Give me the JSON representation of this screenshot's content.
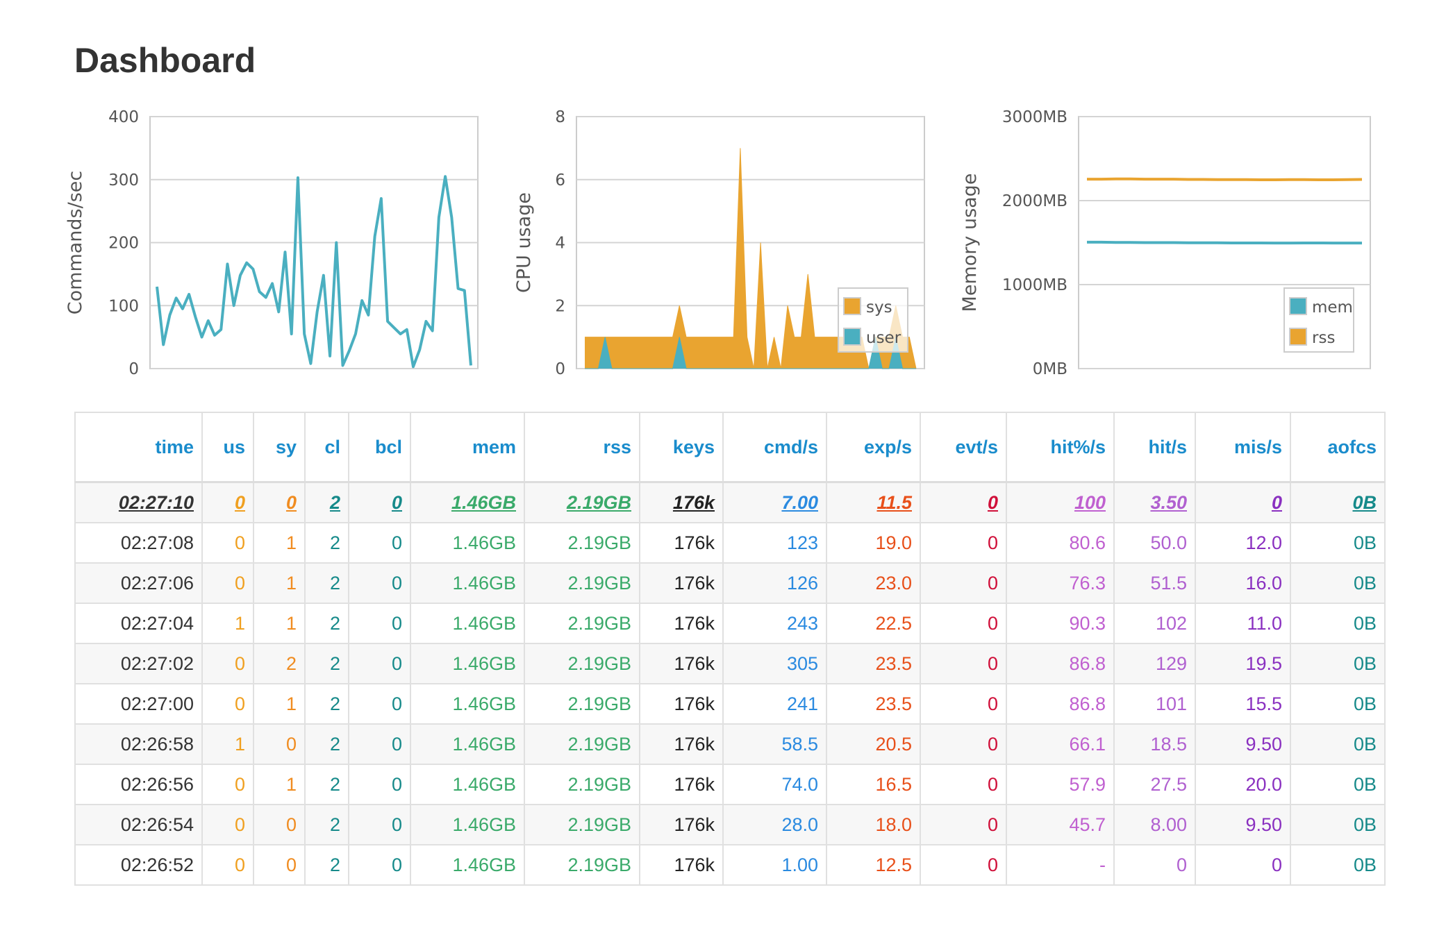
{
  "title": "Dashboard",
  "chart_data": [
    {
      "type": "line",
      "y_label": "Commands/sec",
      "ylim": [
        0,
        400
      ],
      "yticks": [
        0,
        100,
        200,
        300,
        400
      ],
      "grid": true,
      "color": "#4aafc0",
      "values": [
        130,
        38,
        85,
        112,
        95,
        118,
        82,
        50,
        76,
        53,
        62,
        166,
        100,
        148,
        168,
        158,
        122,
        113,
        135,
        90,
        185,
        55,
        303,
        55,
        8,
        90,
        148,
        20,
        200,
        5,
        28,
        55,
        108,
        85,
        210,
        270,
        75,
        65,
        55,
        62,
        3,
        30,
        75,
        60,
        240,
        305,
        240,
        127,
        124,
        5
      ]
    },
    {
      "type": "area",
      "y_label": "CPU usage",
      "ylim": [
        0,
        8
      ],
      "yticks": [
        0,
        2,
        4,
        6,
        8
      ],
      "grid": true,
      "legend": "lower right",
      "series": [
        {
          "name": "sys",
          "color": "#e9a430",
          "values": [
            1,
            1,
            1,
            1,
            1,
            1,
            1,
            1,
            1,
            1,
            1,
            1,
            1,
            1,
            2,
            1,
            1,
            1,
            1,
            1,
            1,
            1,
            1,
            7,
            1,
            0,
            4,
            0,
            1,
            0,
            2,
            1,
            1,
            3,
            1,
            1,
            1,
            1,
            1,
            1,
            1,
            1,
            0,
            1,
            1,
            1,
            2,
            1,
            1,
            0
          ]
        },
        {
          "name": "user",
          "color": "#4aafc0",
          "values": [
            0,
            0,
            0,
            1,
            0,
            0,
            0,
            0,
            0,
            0,
            0,
            0,
            0,
            0,
            1,
            0,
            0,
            0,
            0,
            0,
            0,
            0,
            0,
            0,
            0,
            0,
            0,
            0,
            0,
            0,
            0,
            0,
            0,
            0,
            0,
            0,
            0,
            0,
            0,
            0,
            0,
            0,
            0,
            1,
            0,
            0,
            1,
            0,
            0,
            0
          ]
        }
      ]
    },
    {
      "type": "line",
      "y_label": "Memory usage",
      "ylim": [
        0,
        3000
      ],
      "grid": true,
      "legend": "lower right",
      "yticks": [
        {
          "value": 0,
          "label": "0MB"
        },
        {
          "value": 1000,
          "label": "1000MB"
        },
        {
          "value": 2000,
          "label": "2000MB"
        },
        {
          "value": 3000,
          "label": "3000MB"
        }
      ],
      "series": [
        {
          "name": "mem",
          "color": "#4aafc0",
          "values": [
            1505,
            1505,
            1502,
            1502,
            1500,
            1500,
            1500,
            1498,
            1498,
            1498,
            1496,
            1496,
            1496,
            1495,
            1495,
            1496,
            1496,
            1495,
            1495,
            1495
          ]
        },
        {
          "name": "rss",
          "color": "#e9a430",
          "values": [
            2255,
            2255,
            2258,
            2258,
            2255,
            2255,
            2255,
            2252,
            2252,
            2250,
            2250,
            2250,
            2248,
            2248,
            2250,
            2250,
            2248,
            2248,
            2250,
            2252
          ]
        }
      ]
    }
  ],
  "table": {
    "columns": [
      "time",
      "us",
      "sy",
      "cl",
      "bcl",
      "mem",
      "rss",
      "keys",
      "cmd/s",
      "exp/s",
      "evt/s",
      "hit%/s",
      "hit/s",
      "mis/s",
      "aofcs"
    ],
    "rows": [
      [
        "02:27:10",
        "0",
        "0",
        "2",
        "0",
        "1.46GB",
        "2.19GB",
        "176k",
        "7.00",
        "11.5",
        "0",
        "100",
        "3.50",
        "0",
        "0B"
      ],
      [
        "02:27:08",
        "0",
        "1",
        "2",
        "0",
        "1.46GB",
        "2.19GB",
        "176k",
        "123",
        "19.0",
        "0",
        "80.6",
        "50.0",
        "12.0",
        "0B"
      ],
      [
        "02:27:06",
        "0",
        "1",
        "2",
        "0",
        "1.46GB",
        "2.19GB",
        "176k",
        "126",
        "23.0",
        "0",
        "76.3",
        "51.5",
        "16.0",
        "0B"
      ],
      [
        "02:27:04",
        "1",
        "1",
        "2",
        "0",
        "1.46GB",
        "2.19GB",
        "176k",
        "243",
        "22.5",
        "0",
        "90.3",
        "102",
        "11.0",
        "0B"
      ],
      [
        "02:27:02",
        "0",
        "2",
        "2",
        "0",
        "1.46GB",
        "2.19GB",
        "176k",
        "305",
        "23.5",
        "0",
        "86.8",
        "129",
        "19.5",
        "0B"
      ],
      [
        "02:27:00",
        "0",
        "1",
        "2",
        "0",
        "1.46GB",
        "2.19GB",
        "176k",
        "241",
        "23.5",
        "0",
        "86.8",
        "101",
        "15.5",
        "0B"
      ],
      [
        "02:26:58",
        "1",
        "0",
        "2",
        "0",
        "1.46GB",
        "2.19GB",
        "176k",
        "58.5",
        "20.5",
        "0",
        "66.1",
        "18.5",
        "9.50",
        "0B"
      ],
      [
        "02:26:56",
        "0",
        "1",
        "2",
        "0",
        "1.46GB",
        "2.19GB",
        "176k",
        "74.0",
        "16.5",
        "0",
        "57.9",
        "27.5",
        "20.0",
        "0B"
      ],
      [
        "02:26:54",
        "0",
        "0",
        "2",
        "0",
        "1.46GB",
        "2.19GB",
        "176k",
        "28.0",
        "18.0",
        "0",
        "45.7",
        "8.00",
        "9.50",
        "0B"
      ],
      [
        "02:26:52",
        "0",
        "0",
        "2",
        "0",
        "1.46GB",
        "2.19GB",
        "176k",
        "1.00",
        "12.5",
        "0",
        "-",
        "0",
        "0",
        "0B"
      ]
    ]
  }
}
